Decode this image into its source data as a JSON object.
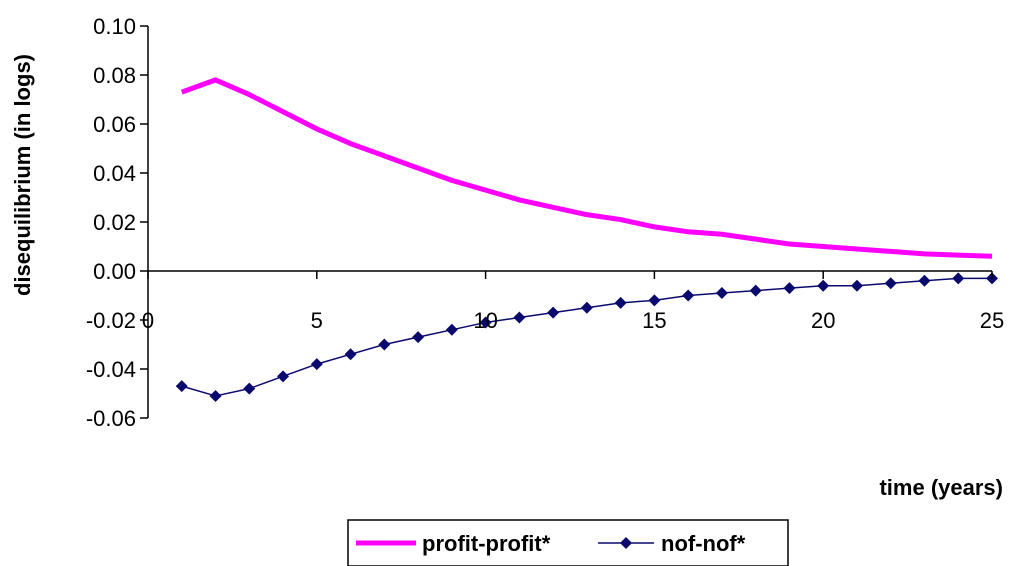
{
  "chart_data": {
    "type": "line",
    "title": "",
    "xlabel": "time (years)",
    "ylabel": "disequilibrium (in logs)",
    "xlim": [
      0,
      25
    ],
    "ylim": [
      -0.06,
      0.1
    ],
    "x_ticks": [
      0,
      5,
      10,
      15,
      20,
      25
    ],
    "x_tick_labels": [
      "0",
      "5",
      "10",
      "15",
      "20",
      "25"
    ],
    "y_ticks": [
      0.1,
      0.08,
      0.06,
      0.04,
      0.02,
      0.0,
      -0.02,
      -0.04,
      -0.06
    ],
    "y_tick_labels": [
      "0.10",
      "0.08",
      "0.06",
      "0.04",
      "0.02",
      "0.00",
      "-0.02",
      "-0.04",
      "-0.06"
    ],
    "grid": false,
    "legend_position": "bottom",
    "series": [
      {
        "name": "profit-profit*",
        "color": "#ff00ff",
        "marker": "none",
        "x": [
          1,
          2,
          3,
          4,
          5,
          6,
          7,
          8,
          9,
          10,
          11,
          12,
          13,
          14,
          15,
          16,
          17,
          18,
          19,
          20,
          21,
          22,
          23,
          24,
          25
        ],
        "y": [
          0.073,
          0.078,
          0.072,
          0.065,
          0.058,
          0.052,
          0.047,
          0.042,
          0.037,
          0.033,
          0.029,
          0.026,
          0.023,
          0.021,
          0.018,
          0.016,
          0.015,
          0.013,
          0.011,
          0.01,
          0.009,
          0.008,
          0.007,
          0.0065,
          0.006
        ]
      },
      {
        "name": "nof-nof*",
        "color": "#0a0a6e",
        "marker": "diamond",
        "x": [
          1,
          2,
          3,
          4,
          5,
          6,
          7,
          8,
          9,
          10,
          11,
          12,
          13,
          14,
          15,
          16,
          17,
          18,
          19,
          20,
          21,
          22,
          23,
          24,
          25
        ],
        "y": [
          -0.047,
          -0.051,
          -0.048,
          -0.043,
          -0.038,
          -0.034,
          -0.03,
          -0.027,
          -0.024,
          -0.021,
          -0.019,
          -0.017,
          -0.015,
          -0.013,
          -0.012,
          -0.01,
          -0.009,
          -0.008,
          -0.007,
          -0.006,
          -0.006,
          -0.005,
          -0.004,
          -0.003,
          -0.003
        ]
      }
    ]
  }
}
